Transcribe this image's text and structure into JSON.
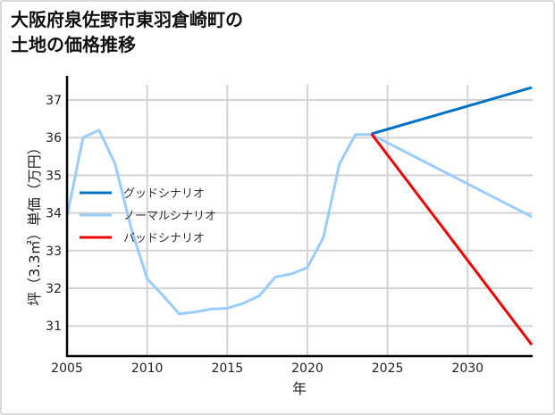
{
  "header": {
    "title_line1": "大阪府泉佐野市東羽倉崎町の",
    "title_line2": "土地の価格推移"
  },
  "chart_data": {
    "type": "line",
    "title": "大阪府泉佐野市東羽倉崎町の土地の価格推移",
    "xlabel": "年",
    "ylabel": "坪（3.3㎡）単価（万円）",
    "xlim": [
      2005,
      2034
    ],
    "ylim": [
      30.2,
      37.7
    ],
    "xticks": [
      2005,
      2010,
      2015,
      2020,
      2025,
      2030
    ],
    "yticks": [
      31,
      32,
      33,
      34,
      35,
      36,
      37
    ],
    "grid": true,
    "legend_position": "center-left",
    "series": [
      {
        "name": "グッドシナリオ",
        "color": "#0072c6",
        "x": [
          2024,
          2034
        ],
        "y": [
          36.1,
          37.33
        ]
      },
      {
        "name": "ノーマルシナリオ",
        "color": "#99ccff",
        "x": [
          2005,
          2006,
          2007,
          2008,
          2009,
          2010,
          2011,
          2012,
          2013,
          2014,
          2015,
          2016,
          2017,
          2018,
          2019,
          2020,
          2021,
          2022,
          2023,
          2024,
          2034
        ],
        "y": [
          33.9,
          36.0,
          36.2,
          35.3,
          33.6,
          32.25,
          31.8,
          31.32,
          31.37,
          31.45,
          31.47,
          31.6,
          31.8,
          32.3,
          32.38,
          32.55,
          33.35,
          35.3,
          36.08,
          36.08,
          33.9
        ]
      },
      {
        "name": "バッドシナリオ",
        "color": "#ee0000",
        "x": [
          2024,
          2034
        ],
        "y": [
          36.1,
          30.5
        ]
      }
    ]
  }
}
